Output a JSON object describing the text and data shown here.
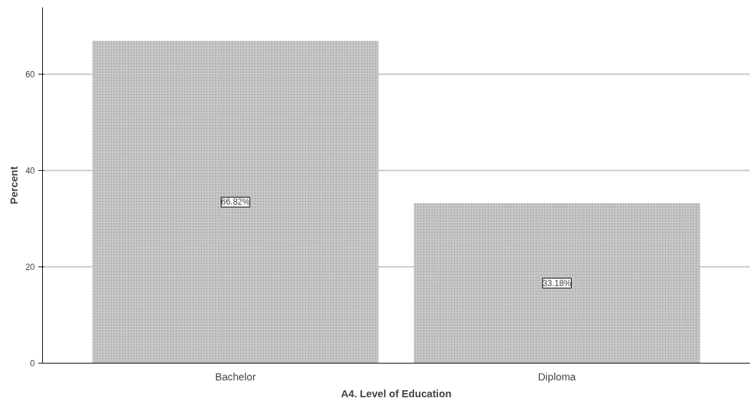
{
  "chart_data": {
    "type": "bar",
    "xlabel": "A4. Level of Education",
    "ylabel": "Percent",
    "categories": [
      "Bachelor",
      "Diploma"
    ],
    "values": [
      66.82,
      33.18
    ],
    "value_labels": [
      "66.82%",
      "33.18%"
    ],
    "color": "#c8c8c8",
    "ylim": [
      0,
      73.8
    ],
    "yticks": [
      0,
      20,
      40,
      60
    ],
    "grid": "y"
  }
}
